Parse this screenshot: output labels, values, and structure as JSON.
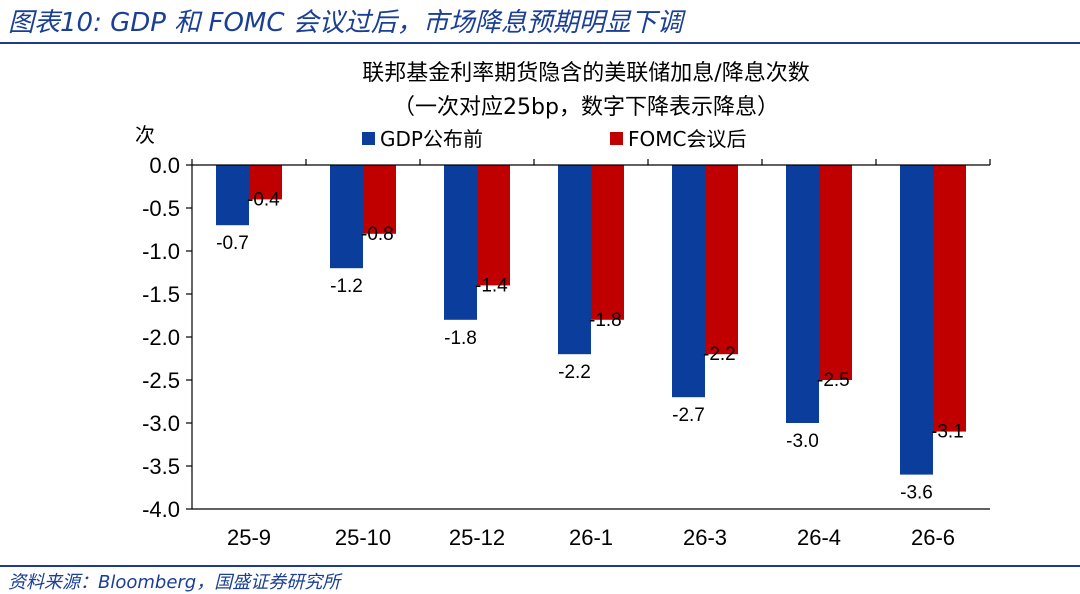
{
  "figure": {
    "title": "图表10:  GDP 和 FOMC 会议过后，市场降息预期明显下调",
    "source": "资料来源：Bloomberg，国盛证券研究所"
  },
  "chart_data": {
    "type": "bar",
    "title": "联邦基金利率期货隐含的美联储加息/降息次数",
    "subtitle": "（一次对应25bp，数字下降表示降息）",
    "ylabel": "次",
    "xlabel": "",
    "categories": [
      "25-9",
      "25-10",
      "25-12",
      "26-1",
      "26-3",
      "26-4",
      "26-6"
    ],
    "series": [
      {
        "name": "GDP公布前",
        "color": "#0a3d9c",
        "values": [
          -0.7,
          -1.2,
          -1.8,
          -2.2,
          -2.7,
          -3.0,
          -3.6
        ]
      },
      {
        "name": "FOMC会议后",
        "color": "#c00000",
        "values": [
          -0.4,
          -0.8,
          -1.4,
          -1.8,
          -2.2,
          -2.5,
          -3.1
        ]
      }
    ],
    "ylim": [
      -4.0,
      0.0
    ],
    "yticks": [
      0.0,
      -0.5,
      -1.0,
      -1.5,
      -2.0,
      -2.5,
      -3.0,
      -3.5,
      -4.0
    ],
    "grid": false,
    "legend_position": "top"
  }
}
